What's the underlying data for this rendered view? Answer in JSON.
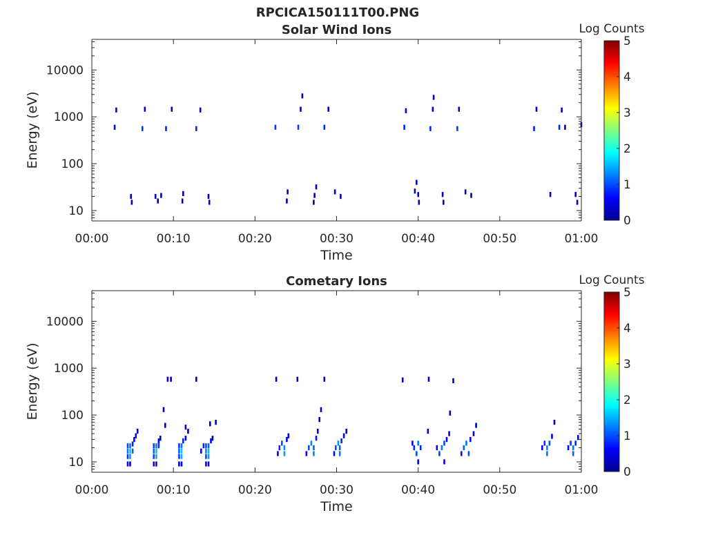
{
  "figure_title": "RPCICA150111T00.PNG",
  "colormap": [
    "#00008f",
    "#0000ff",
    "#0080ff",
    "#00ffff",
    "#80ff80",
    "#ffff00",
    "#ff8000",
    "#ff0000",
    "#800000"
  ],
  "chart_data": [
    {
      "type": "heatmap",
      "title": "Solar Wind Ions",
      "xlabel": "Time",
      "ylabel": "Energy (eV)",
      "xlim": [
        0,
        60
      ],
      "ylim": [
        6,
        45000
      ],
      "yscale": "log",
      "xticks": [
        "00:00",
        "00:10",
        "00:20",
        "00:30",
        "00:40",
        "00:50",
        "01:00"
      ],
      "yticks": [
        "10",
        "100",
        "1000",
        "10000"
      ],
      "colorbar": {
        "label": "Log Counts",
        "range": [
          0,
          5
        ],
        "ticks": [
          "0",
          "1",
          "2",
          "3",
          "4",
          "5"
        ]
      },
      "cells": [
        [
          3.0,
          1400,
          0.4
        ],
        [
          2.8,
          600,
          0.6
        ],
        [
          6.2,
          560,
          0.9
        ],
        [
          6.5,
          1450,
          0.4
        ],
        [
          9.1,
          560,
          0.8
        ],
        [
          9.8,
          1450,
          0.3
        ],
        [
          12.8,
          560,
          0.8
        ],
        [
          13.3,
          1400,
          0.4
        ],
        [
          22.5,
          600,
          0.9
        ],
        [
          25.3,
          600,
          0.9
        ],
        [
          25.6,
          1450,
          0.3
        ],
        [
          25.8,
          2800,
          0.2
        ],
        [
          28.5,
          600,
          0.8
        ],
        [
          29.0,
          1450,
          0.3
        ],
        [
          38.3,
          600,
          0.8
        ],
        [
          38.5,
          1350,
          0.3
        ],
        [
          41.5,
          560,
          0.8
        ],
        [
          41.8,
          1450,
          0.3
        ],
        [
          41.9,
          2600,
          0.2
        ],
        [
          44.8,
          560,
          0.9
        ],
        [
          45.0,
          1450,
          0.3
        ],
        [
          54.2,
          560,
          0.8
        ],
        [
          54.5,
          1450,
          0.3
        ],
        [
          57.3,
          600,
          0.8
        ],
        [
          57.6,
          1400,
          0.3
        ],
        [
          58.0,
          600,
          0.2
        ],
        [
          60.0,
          680,
          0.2
        ],
        [
          4.8,
          20,
          0.2
        ],
        [
          4.9,
          15,
          0.2
        ],
        [
          7.8,
          20,
          0.2
        ],
        [
          8.1,
          16,
          0.2
        ],
        [
          8.5,
          21,
          0.2
        ],
        [
          11.2,
          23,
          0.2
        ],
        [
          11.1,
          16,
          0.2
        ],
        [
          14.3,
          20,
          0.2
        ],
        [
          14.4,
          15,
          0.2
        ],
        [
          24.0,
          25,
          0.2
        ],
        [
          23.9,
          16,
          0.2
        ],
        [
          27.3,
          21,
          0.2
        ],
        [
          27.5,
          32,
          0.2
        ],
        [
          27.2,
          15,
          0.2
        ],
        [
          30.5,
          20,
          0.2
        ],
        [
          29.8,
          25,
          0.2
        ],
        [
          40.0,
          22,
          0.2
        ],
        [
          40.1,
          15,
          0.2
        ],
        [
          39.8,
          40,
          0.2
        ],
        [
          39.6,
          26,
          0.2
        ],
        [
          43.0,
          22,
          0.2
        ],
        [
          43.1,
          15,
          0.2
        ],
        [
          45.8,
          25,
          0.2
        ],
        [
          46.5,
          21,
          0.2
        ],
        [
          56.2,
          22,
          0.2
        ],
        [
          59.3,
          22,
          0.2
        ],
        [
          59.5,
          15,
          0.2
        ]
      ]
    },
    {
      "type": "heatmap",
      "title": "Cometary Ions",
      "xlabel": "Time",
      "ylabel": "Energy (eV)",
      "xlim": [
        0,
        60
      ],
      "ylim": [
        6,
        45000
      ],
      "yscale": "log",
      "xticks": [
        "00:00",
        "00:10",
        "00:20",
        "00:30",
        "00:40",
        "00:50",
        "01:00"
      ],
      "yticks": [
        "10",
        "100",
        "1000",
        "10000"
      ],
      "colorbar": {
        "label": "Log Counts",
        "range": [
          0,
          5
        ],
        "ticks": [
          "0",
          "1",
          "2",
          "3",
          "4",
          "5"
        ]
      },
      "cells": [
        [
          4.4,
          9,
          0.6
        ],
        [
          4.4,
          13,
          0.9
        ],
        [
          4.4,
          17,
          1.2
        ],
        [
          4.4,
          22,
          1.0
        ],
        [
          4.7,
          9,
          0.4
        ],
        [
          4.7,
          13,
          1.4
        ],
        [
          4.7,
          17,
          1.6
        ],
        [
          4.7,
          22,
          1.2
        ],
        [
          5.0,
          17,
          1.1
        ],
        [
          5.0,
          24,
          0.8
        ],
        [
          5.2,
          30,
          0.6
        ],
        [
          5.4,
          36,
          0.4
        ],
        [
          5.6,
          45,
          0.2
        ],
        [
          7.6,
          9,
          0.4
        ],
        [
          7.6,
          13,
          0.9
        ],
        [
          7.6,
          17,
          1.1
        ],
        [
          7.6,
          22,
          0.9
        ],
        [
          7.9,
          9,
          0.5
        ],
        [
          7.9,
          13,
          1.5
        ],
        [
          7.9,
          17,
          1.6
        ],
        [
          7.9,
          22,
          1.2
        ],
        [
          8.2,
          22,
          0.9
        ],
        [
          8.2,
          28,
          0.6
        ],
        [
          8.4,
          32,
          0.3
        ],
        [
          8.8,
          130,
          0.2
        ],
        [
          9.0,
          60,
          0.2
        ],
        [
          9.3,
          580,
          0.3
        ],
        [
          9.7,
          580,
          0.2
        ],
        [
          10.7,
          9,
          0.4
        ],
        [
          10.7,
          13,
          0.9
        ],
        [
          10.7,
          17,
          1.1
        ],
        [
          10.7,
          22,
          0.9
        ],
        [
          11.0,
          9,
          0.5
        ],
        [
          11.0,
          13,
          1.5
        ],
        [
          11.0,
          17,
          1.6
        ],
        [
          11.0,
          22,
          1.2
        ],
        [
          11.2,
          28,
          0.8
        ],
        [
          11.5,
          32,
          0.5
        ],
        [
          11.8,
          45,
          0.3
        ],
        [
          11.5,
          55,
          0.2
        ],
        [
          12.8,
          580,
          0.2
        ],
        [
          13.4,
          17,
          0.5
        ],
        [
          13.7,
          22,
          0.8
        ],
        [
          14.0,
          9,
          0.5
        ],
        [
          14.0,
          13,
          1.0
        ],
        [
          14.0,
          17,
          1.3
        ],
        [
          14.0,
          22,
          1.0
        ],
        [
          14.3,
          9,
          0.6
        ],
        [
          14.3,
          13,
          1.4
        ],
        [
          14.3,
          17,
          1.5
        ],
        [
          14.3,
          22,
          1.1
        ],
        [
          14.6,
          28,
          0.6
        ],
        [
          14.8,
          32,
          0.3
        ],
        [
          14.5,
          65,
          0.2
        ],
        [
          15.2,
          70,
          0.2
        ],
        [
          22.6,
          580,
          0.2
        ],
        [
          22.8,
          15,
          0.5
        ],
        [
          23.0,
          20,
          0.8
        ],
        [
          23.3,
          25,
          1.0
        ],
        [
          23.6,
          15,
          1.4
        ],
        [
          23.6,
          20,
          1.3
        ],
        [
          23.9,
          30,
          0.6
        ],
        [
          24.1,
          36,
          0.4
        ],
        [
          25.2,
          580,
          0.2
        ],
        [
          26.3,
          15,
          0.6
        ],
        [
          26.6,
          20,
          1.0
        ],
        [
          26.9,
          25,
          1.3
        ],
        [
          27.2,
          15,
          1.3
        ],
        [
          27.2,
          20,
          1.1
        ],
        [
          27.5,
          32,
          0.7
        ],
        [
          27.7,
          45,
          0.4
        ],
        [
          27.9,
          80,
          0.2
        ],
        [
          28.1,
          130,
          0.2
        ],
        [
          28.5,
          580,
          0.2
        ],
        [
          29.7,
          15,
          0.6
        ],
        [
          29.9,
          20,
          1.0
        ],
        [
          30.2,
          25,
          1.3
        ],
        [
          30.4,
          15,
          1.2
        ],
        [
          30.4,
          20,
          1.1
        ],
        [
          30.6,
          28,
          0.8
        ],
        [
          30.9,
          36,
          0.5
        ],
        [
          31.2,
          45,
          0.3
        ],
        [
          38.1,
          560,
          0.3
        ],
        [
          39.3,
          25,
          0.6
        ],
        [
          39.5,
          20,
          0.8
        ],
        [
          39.8,
          15,
          1.0
        ],
        [
          40.0,
          25,
          1.2
        ],
        [
          40.0,
          10,
          0.4
        ],
        [
          40.3,
          20,
          0.8
        ],
        [
          41.3,
          580,
          0.2
        ],
        [
          41.2,
          45,
          0.2
        ],
        [
          42.3,
          20,
          0.6
        ],
        [
          42.6,
          15,
          0.9
        ],
        [
          42.9,
          20,
          1.2
        ],
        [
          43.2,
          25,
          1.0
        ],
        [
          43.2,
          10,
          0.4
        ],
        [
          43.5,
          30,
          0.6
        ],
        [
          43.8,
          40,
          0.4
        ],
        [
          43.9,
          110,
          0.2
        ],
        [
          44.3,
          540,
          0.3
        ],
        [
          45.3,
          15,
          0.7
        ],
        [
          45.6,
          20,
          1.1
        ],
        [
          45.9,
          25,
          1.2
        ],
        [
          46.2,
          15,
          1.0
        ],
        [
          46.4,
          30,
          0.6
        ],
        [
          46.8,
          40,
          0.4
        ],
        [
          47.1,
          60,
          0.2
        ],
        [
          55.2,
          20,
          0.5
        ],
        [
          55.5,
          25,
          0.8
        ],
        [
          55.8,
          15,
          1.2
        ],
        [
          55.8,
          20,
          1.3
        ],
        [
          56.1,
          25,
          1.0
        ],
        [
          56.4,
          35,
          0.6
        ],
        [
          56.7,
          70,
          0.2
        ],
        [
          58.4,
          20,
          0.6
        ],
        [
          58.7,
          25,
          0.9
        ],
        [
          59.0,
          15,
          1.1
        ],
        [
          59.0,
          20,
          1.2
        ],
        [
          59.3,
          25,
          0.8
        ],
        [
          59.6,
          33,
          0.5
        ]
      ]
    }
  ]
}
